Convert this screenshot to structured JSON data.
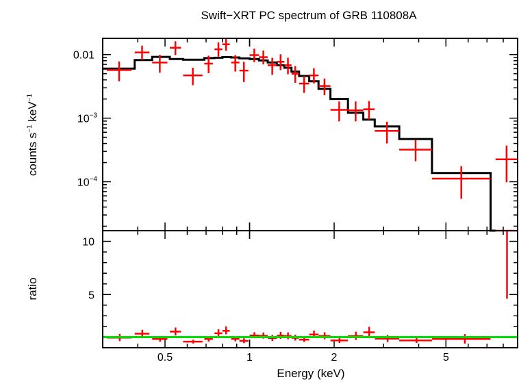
{
  "chart_data": [
    {
      "type": "scatter",
      "title": "Swift−XRT PC spectrum of GRB 110808A",
      "ylabel_parts": [
        "counts s",
        "−1",
        " keV",
        "−1"
      ],
      "xscale": "log",
      "yscale": "log",
      "xlim": [
        0.3,
        9.0
      ],
      "ylim": [
        1.7e-05,
        0.018
      ],
      "ytick_values": [
        0.01,
        0.001,
        0.0001
      ],
      "ytick_labels": [
        {
          "base": "0.01",
          "exp": ""
        },
        {
          "base": "10",
          "exp": "−3"
        },
        {
          "base": "10",
          "exp": "−4"
        }
      ],
      "series": [
        {
          "role": "data",
          "color": "#ff0000",
          "points": [
            {
              "xlo": 0.31,
              "xhi": 0.38,
              "y": 0.0057,
              "ylo": 0.0038,
              "yhi": 0.0078
            },
            {
              "xlo": 0.39,
              "xhi": 0.44,
              "y": 0.0108,
              "ylo": 0.0082,
              "yhi": 0.0138
            },
            {
              "xlo": 0.45,
              "xhi": 0.51,
              "y": 0.0075,
              "ylo": 0.0052,
              "yhi": 0.0099
            },
            {
              "xlo": 0.52,
              "xhi": 0.57,
              "y": 0.0128,
              "ylo": 0.0098,
              "yhi": 0.0162
            },
            {
              "xlo": 0.58,
              "xhi": 0.68,
              "y": 0.0047,
              "ylo": 0.0033,
              "yhi": 0.0062
            },
            {
              "xlo": 0.69,
              "xhi": 0.74,
              "y": 0.0072,
              "ylo": 0.0051,
              "yhi": 0.0096
            },
            {
              "xlo": 0.75,
              "xhi": 0.8,
              "y": 0.0121,
              "ylo": 0.0093,
              "yhi": 0.0155
            },
            {
              "xlo": 0.8,
              "xhi": 0.85,
              "y": 0.0145,
              "ylo": 0.0115,
              "yhi": 0.0182
            },
            {
              "xlo": 0.86,
              "xhi": 0.92,
              "y": 0.0075,
              "ylo": 0.0054,
              "yhi": 0.0098
            },
            {
              "xlo": 0.92,
              "xhi": 0.99,
              "y": 0.0056,
              "ylo": 0.0037,
              "yhi": 0.0077
            },
            {
              "xlo": 1.0,
              "xhi": 1.08,
              "y": 0.0098,
              "ylo": 0.0076,
              "yhi": 0.0124
            },
            {
              "xlo": 1.08,
              "xhi": 1.16,
              "y": 0.0091,
              "ylo": 0.007,
              "yhi": 0.0116
            },
            {
              "xlo": 1.16,
              "xhi": 1.25,
              "y": 0.0068,
              "ylo": 0.0048,
              "yhi": 0.0089
            },
            {
              "xlo": 1.25,
              "xhi": 1.33,
              "y": 0.0077,
              "ylo": 0.0057,
              "yhi": 0.0101
            },
            {
              "xlo": 1.33,
              "xhi": 1.41,
              "y": 0.0068,
              "ylo": 0.0049,
              "yhi": 0.0089
            },
            {
              "xlo": 1.41,
              "xhi": 1.5,
              "y": 0.005,
              "ylo": 0.0036,
              "yhi": 0.0066
            },
            {
              "xlo": 1.5,
              "xhi": 1.63,
              "y": 0.0035,
              "ylo": 0.0025,
              "yhi": 0.0046
            },
            {
              "xlo": 1.63,
              "xhi": 1.76,
              "y": 0.0047,
              "ylo": 0.0035,
              "yhi": 0.0061
            },
            {
              "xlo": 1.76,
              "xhi": 1.94,
              "y": 0.0032,
              "ylo": 0.0023,
              "yhi": 0.0042
            },
            {
              "xlo": 1.94,
              "xhi": 2.24,
              "y": 0.00135,
              "ylo": 0.00089,
              "yhi": 0.00183
            },
            {
              "xlo": 2.24,
              "xhi": 2.54,
              "y": 0.00133,
              "ylo": 0.00089,
              "yhi": 0.00183
            },
            {
              "xlo": 2.54,
              "xhi": 2.79,
              "y": 0.00138,
              "ylo": 0.00095,
              "yhi": 0.00186
            },
            {
              "xlo": 2.79,
              "xhi": 3.41,
              "y": 0.00063,
              "ylo": 0.0004,
              "yhi": 0.00088
            },
            {
              "xlo": 3.41,
              "xhi": 4.46,
              "y": 0.00032,
              "ylo": 0.00021,
              "yhi": 0.00045
            },
            {
              "xlo": 4.46,
              "xhi": 7.21,
              "y": 0.000112,
              "ylo": 5.4e-05,
              "yhi": 0.000175
            },
            {
              "xlo": 7.51,
              "xhi": 9.0,
              "y": 0.000225,
              "ylo": 9.8e-05,
              "yhi": 0.00037
            }
          ]
        },
        {
          "role": "model",
          "color": "#000000",
          "steps": [
            {
              "xlo": 0.3,
              "xhi": 0.39,
              "y": 0.006
            },
            {
              "xlo": 0.39,
              "xhi": 0.45,
              "y": 0.0082
            },
            {
              "xlo": 0.45,
              "xhi": 0.52,
              "y": 0.0092
            },
            {
              "xlo": 0.52,
              "xhi": 0.58,
              "y": 0.0085
            },
            {
              "xlo": 0.58,
              "xhi": 0.69,
              "y": 0.0083
            },
            {
              "xlo": 0.69,
              "xhi": 0.75,
              "y": 0.0088
            },
            {
              "xlo": 0.75,
              "xhi": 0.8,
              "y": 0.0089
            },
            {
              "xlo": 0.8,
              "xhi": 0.86,
              "y": 0.0091
            },
            {
              "xlo": 0.86,
              "xhi": 0.92,
              "y": 0.009
            },
            {
              "xlo": 0.92,
              "xhi": 1.0,
              "y": 0.0087
            },
            {
              "xlo": 1.0,
              "xhi": 1.08,
              "y": 0.0085
            },
            {
              "xlo": 1.08,
              "xhi": 1.16,
              "y": 0.0081
            },
            {
              "xlo": 1.16,
              "xhi": 1.25,
              "y": 0.0075
            },
            {
              "xlo": 1.25,
              "xhi": 1.33,
              "y": 0.0068
            },
            {
              "xlo": 1.33,
              "xhi": 1.41,
              "y": 0.0062
            },
            {
              "xlo": 1.41,
              "xhi": 1.5,
              "y": 0.0054
            },
            {
              "xlo": 1.5,
              "xhi": 1.63,
              "y": 0.0046
            },
            {
              "xlo": 1.63,
              "xhi": 1.76,
              "y": 0.0038
            },
            {
              "xlo": 1.76,
              "xhi": 1.94,
              "y": 0.0029
            },
            {
              "xlo": 1.94,
              "xhi": 2.24,
              "y": 0.002
            },
            {
              "xlo": 2.24,
              "xhi": 2.54,
              "y": 0.00122
            },
            {
              "xlo": 2.54,
              "xhi": 2.79,
              "y": 0.00095
            },
            {
              "xlo": 2.79,
              "xhi": 3.41,
              "y": 0.00074
            },
            {
              "xlo": 3.41,
              "xhi": 4.46,
              "y": 0.00047
            },
            {
              "xlo": 4.46,
              "xhi": 7.21,
              "y": 0.000137
            },
            {
              "xlo": 7.21,
              "xhi": 7.51,
              "y": 1.7e-05
            }
          ]
        }
      ]
    },
    {
      "type": "scatter",
      "xlabel": "Energy (keV)",
      "ylabel": "ratio",
      "xscale": "log",
      "yscale": "linear",
      "xlim": [
        0.3,
        9.0
      ],
      "ylim": [
        0,
        11
      ],
      "ytick_values": [
        5,
        10
      ],
      "ytick_labels": [
        "5",
        "10"
      ],
      "xtick_values": [
        0.5,
        1,
        2,
        5
      ],
      "xtick_labels": [
        "0.5",
        "1",
        "2",
        "5"
      ],
      "reference_line": {
        "y": 1,
        "color": "#00e000"
      },
      "series": [
        {
          "role": "ratio",
          "color": "#ff0000",
          "points": [
            {
              "x": 0.345,
              "y": 0.95,
              "ylo": 0.63,
              "yhi": 1.3
            },
            {
              "x": 0.415,
              "y": 1.32,
              "ylo": 1.0,
              "yhi": 1.68
            },
            {
              "x": 0.48,
              "y": 0.82,
              "ylo": 0.57,
              "yhi": 1.08
            },
            {
              "x": 0.545,
              "y": 1.51,
              "ylo": 1.15,
              "yhi": 1.9
            },
            {
              "x": 0.63,
              "y": 0.57,
              "ylo": 0.4,
              "yhi": 0.75
            },
            {
              "x": 0.715,
              "y": 0.82,
              "ylo": 0.58,
              "yhi": 1.09
            },
            {
              "x": 0.775,
              "y": 1.36,
              "ylo": 1.04,
              "yhi": 1.74
            },
            {
              "x": 0.825,
              "y": 1.59,
              "ylo": 1.26,
              "yhi": 2.0
            },
            {
              "x": 0.89,
              "y": 0.83,
              "ylo": 0.6,
              "yhi": 1.09
            },
            {
              "x": 0.955,
              "y": 0.64,
              "ylo": 0.43,
              "yhi": 0.89
            },
            {
              "x": 1.04,
              "y": 1.15,
              "ylo": 0.89,
              "yhi": 1.46
            },
            {
              "x": 1.12,
              "y": 1.12,
              "ylo": 0.86,
              "yhi": 1.43
            },
            {
              "x": 1.205,
              "y": 0.91,
              "ylo": 0.64,
              "yhi": 1.19
            },
            {
              "x": 1.29,
              "y": 1.13,
              "ylo": 0.84,
              "yhi": 1.49
            },
            {
              "x": 1.37,
              "y": 1.1,
              "ylo": 0.79,
              "yhi": 1.44
            },
            {
              "x": 1.455,
              "y": 0.93,
              "ylo": 0.67,
              "yhi": 1.22
            },
            {
              "x": 1.565,
              "y": 0.76,
              "ylo": 0.54,
              "yhi": 1.0
            },
            {
              "x": 1.695,
              "y": 1.24,
              "ylo": 0.92,
              "yhi": 1.61
            },
            {
              "x": 1.85,
              "y": 1.1,
              "ylo": 0.79,
              "yhi": 1.45
            },
            {
              "x": 2.09,
              "y": 0.68,
              "ylo": 0.45,
              "yhi": 0.92
            },
            {
              "x": 2.39,
              "y": 1.09,
              "ylo": 0.73,
              "yhi": 1.5
            },
            {
              "x": 2.665,
              "y": 1.45,
              "ylo": 1.0,
              "yhi": 1.96
            },
            {
              "x": 3.1,
              "y": 0.85,
              "ylo": 0.54,
              "yhi": 1.19
            },
            {
              "x": 3.93,
              "y": 0.68,
              "ylo": 0.45,
              "yhi": 0.96
            },
            {
              "x": 5.84,
              "y": 0.82,
              "ylo": 0.39,
              "yhi": 1.28
            },
            {
              "x": 8.25,
              "y": 11.0,
              "ylo": 4.6,
              "yhi": 11.0
            }
          ],
          "xerr": [
            [
              0.31,
              0.38
            ],
            [
              0.39,
              0.44
            ],
            [
              0.45,
              0.51
            ],
            [
              0.52,
              0.57
            ],
            [
              0.58,
              0.68
            ],
            [
              0.69,
              0.74
            ],
            [
              0.75,
              0.8
            ],
            [
              0.8,
              0.85
            ],
            [
              0.86,
              0.92
            ],
            [
              0.92,
              0.99
            ],
            [
              1.0,
              1.08
            ],
            [
              1.08,
              1.16
            ],
            [
              1.16,
              1.25
            ],
            [
              1.25,
              1.33
            ],
            [
              1.33,
              1.41
            ],
            [
              1.41,
              1.5
            ],
            [
              1.5,
              1.63
            ],
            [
              1.63,
              1.76
            ],
            [
              1.76,
              1.94
            ],
            [
              1.94,
              2.24
            ],
            [
              2.24,
              2.54
            ],
            [
              2.54,
              2.79
            ],
            [
              2.79,
              3.41
            ],
            [
              3.41,
              4.46
            ],
            [
              4.46,
              7.21
            ],
            [
              7.51,
              9.0
            ]
          ]
        }
      ]
    }
  ]
}
